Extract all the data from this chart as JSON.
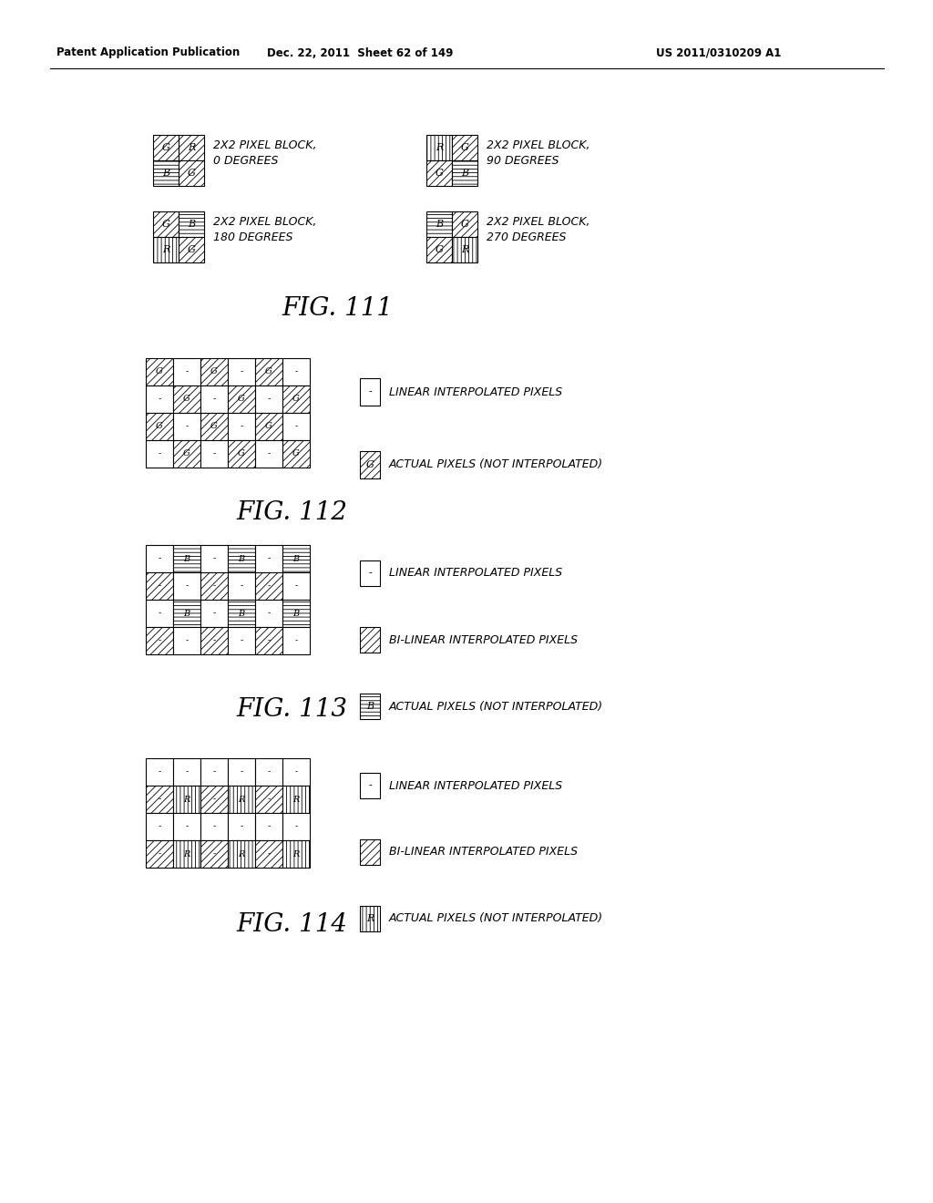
{
  "header_left": "Patent Application Publication",
  "header_mid": "Dec. 22, 2011  Sheet 62 of 149",
  "header_right": "US 2011/0310209 A1",
  "fig111_label": "FIG. 111",
  "fig112_label": "FIG. 112",
  "fig113_label": "FIG. 113",
  "fig114_label": "FIG. 114",
  "bg_color": "#ffffff",
  "text_color": "#000000"
}
